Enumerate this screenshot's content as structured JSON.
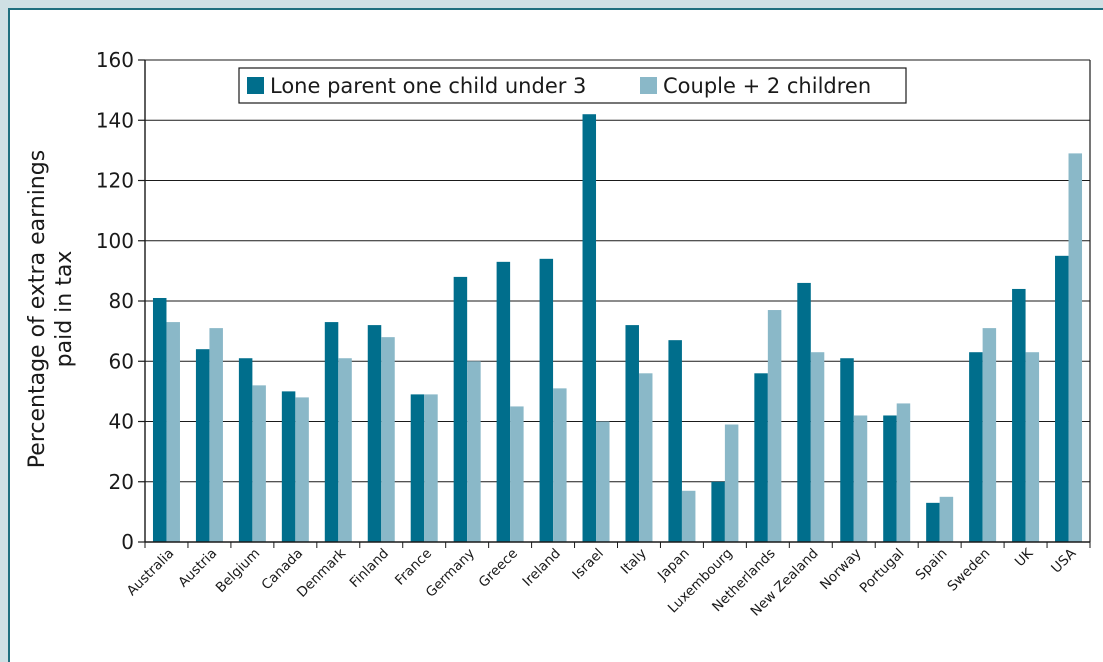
{
  "chart_data": {
    "type": "bar",
    "ylabel": [
      "Percentage of extra earnings",
      "paid in tax"
    ],
    "ylim": [
      0,
      160
    ],
    "yticks": [
      "0",
      "20",
      "40",
      "60",
      "80",
      "100",
      "120",
      "140",
      "160"
    ],
    "grid": true,
    "legend_position": "top-center",
    "categories": [
      "Australia",
      "Austria",
      "Belgium",
      "Canada",
      "Denmark",
      "Finland",
      "France",
      "Germany",
      "Greece",
      "Ireland",
      "Israel",
      "Italy",
      "Japan",
      "Luxembourg",
      "Netherlands",
      "New Zealand",
      "Norway",
      "Portugal",
      "Spain",
      "Sweden",
      "UK",
      "USA"
    ],
    "series": [
      {
        "name": "Lone parent one child under 3",
        "color": "#006e8c",
        "values": [
          81,
          64,
          61,
          50,
          73,
          72,
          49,
          88,
          93,
          94,
          142,
          72,
          67,
          20,
          56,
          86,
          61,
          42,
          13,
          63,
          84,
          95
        ]
      },
      {
        "name": "Couple + 2 children",
        "color": "#8ab8c8",
        "values": [
          73,
          71,
          52,
          48,
          61,
          68,
          49,
          60,
          45,
          51,
          40,
          56,
          17,
          39,
          77,
          63,
          42,
          46,
          15,
          71,
          63,
          129
        ]
      }
    ]
  }
}
